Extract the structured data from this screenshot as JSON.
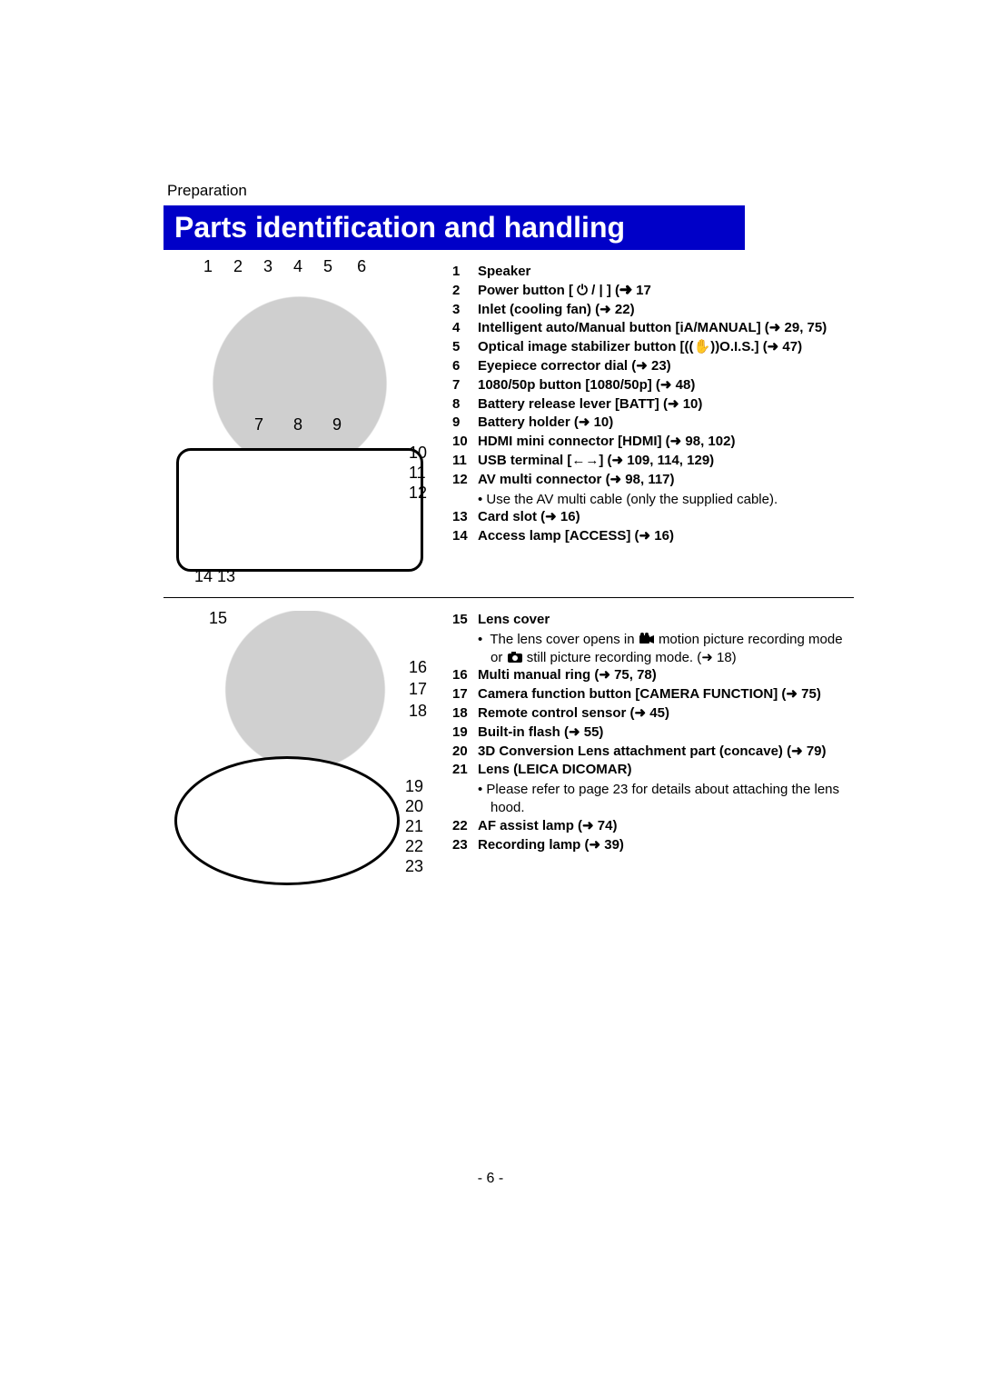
{
  "section_label": "Preparation",
  "title": "Parts identification and handling",
  "page_number": "- 6 -",
  "colors": {
    "title_bg": "#0000c8",
    "title_fg": "#ffffff",
    "text": "#000000",
    "bg": "#ffffff"
  },
  "diagram1": {
    "top_numbers": "1 2 3 4 5",
    "top_number_6": "6",
    "mid_numbers": "7  8  9",
    "side_numbers": [
      "10",
      "11",
      "12"
    ],
    "bottom_numbers": "14     13"
  },
  "diagram2": {
    "top_number": "15",
    "side_a": [
      "16",
      "17",
      "18"
    ],
    "side_b": [
      "19",
      "20",
      "21",
      "22",
      "23"
    ]
  },
  "parts_a": [
    {
      "n": "1",
      "t": "Speaker"
    },
    {
      "n": "2",
      "t": "Power button [ ⏻ / | ] (➜ 17"
    },
    {
      "n": "3",
      "t": "Inlet (cooling fan) (➜ 22)"
    },
    {
      "n": "4",
      "t": "Intelligent auto/Manual button [iA/MANUAL] (➜ 29, 75)"
    },
    {
      "n": "5",
      "t": "Optical image stabilizer button [((✋))O.I.S.] (➜ 47)"
    },
    {
      "n": "6",
      "t": "Eyepiece corrector dial (➜ 23)"
    },
    {
      "n": "7",
      "t": "1080/50p button [1080/50p] (➜ 48)"
    },
    {
      "n": "8",
      "t": "Battery release lever [BATT] (➜ 10)"
    },
    {
      "n": "9",
      "t": "Battery holder (➜ 10)"
    },
    {
      "n": "10",
      "t": "HDMI mini connector [HDMI] (➜ 98, 102)"
    },
    {
      "n": "11",
      "t": "USB terminal [←→] (➜ 109, 114, 129)"
    },
    {
      "n": "12",
      "t": "AV multi connector (➜ 98, 117)"
    }
  ],
  "note_a": "Use the AV multi cable (only the supplied cable).",
  "parts_a_tail": [
    {
      "n": "13",
      "t": "Card slot (➜ 16)"
    },
    {
      "n": "14",
      "t": "Access lamp [ACCESS] (➜ 16)"
    }
  ],
  "parts_b_head": [
    {
      "n": "15",
      "t": "Lens cover"
    }
  ],
  "note_b_pre": "The lens cover opens in ",
  "note_b_mid": " motion picture recording mode or ",
  "note_b_post": " still picture recording mode. (➜ 18)",
  "parts_b": [
    {
      "n": "16",
      "t": "Multi manual ring (➜ 75, 78)"
    },
    {
      "n": "17",
      "t": "Camera function button [CAMERA FUNCTION] (➜ 75)"
    },
    {
      "n": "18",
      "t": "Remote control sensor (➜ 45)"
    },
    {
      "n": "19",
      "t": "Built-in flash (➜ 55)"
    },
    {
      "n": "20",
      "t": "3D Conversion Lens attachment part (concave) (➜ 79)"
    },
    {
      "n": "21",
      "t": "Lens (LEICA DICOMAR)"
    }
  ],
  "note_c": "Please refer to page 23 for details about attaching the lens hood.",
  "parts_b_tail": [
    {
      "n": "22",
      "t": "AF assist lamp (➜ 74)"
    },
    {
      "n": "23",
      "t": "Recording lamp (➜ 39)"
    }
  ]
}
